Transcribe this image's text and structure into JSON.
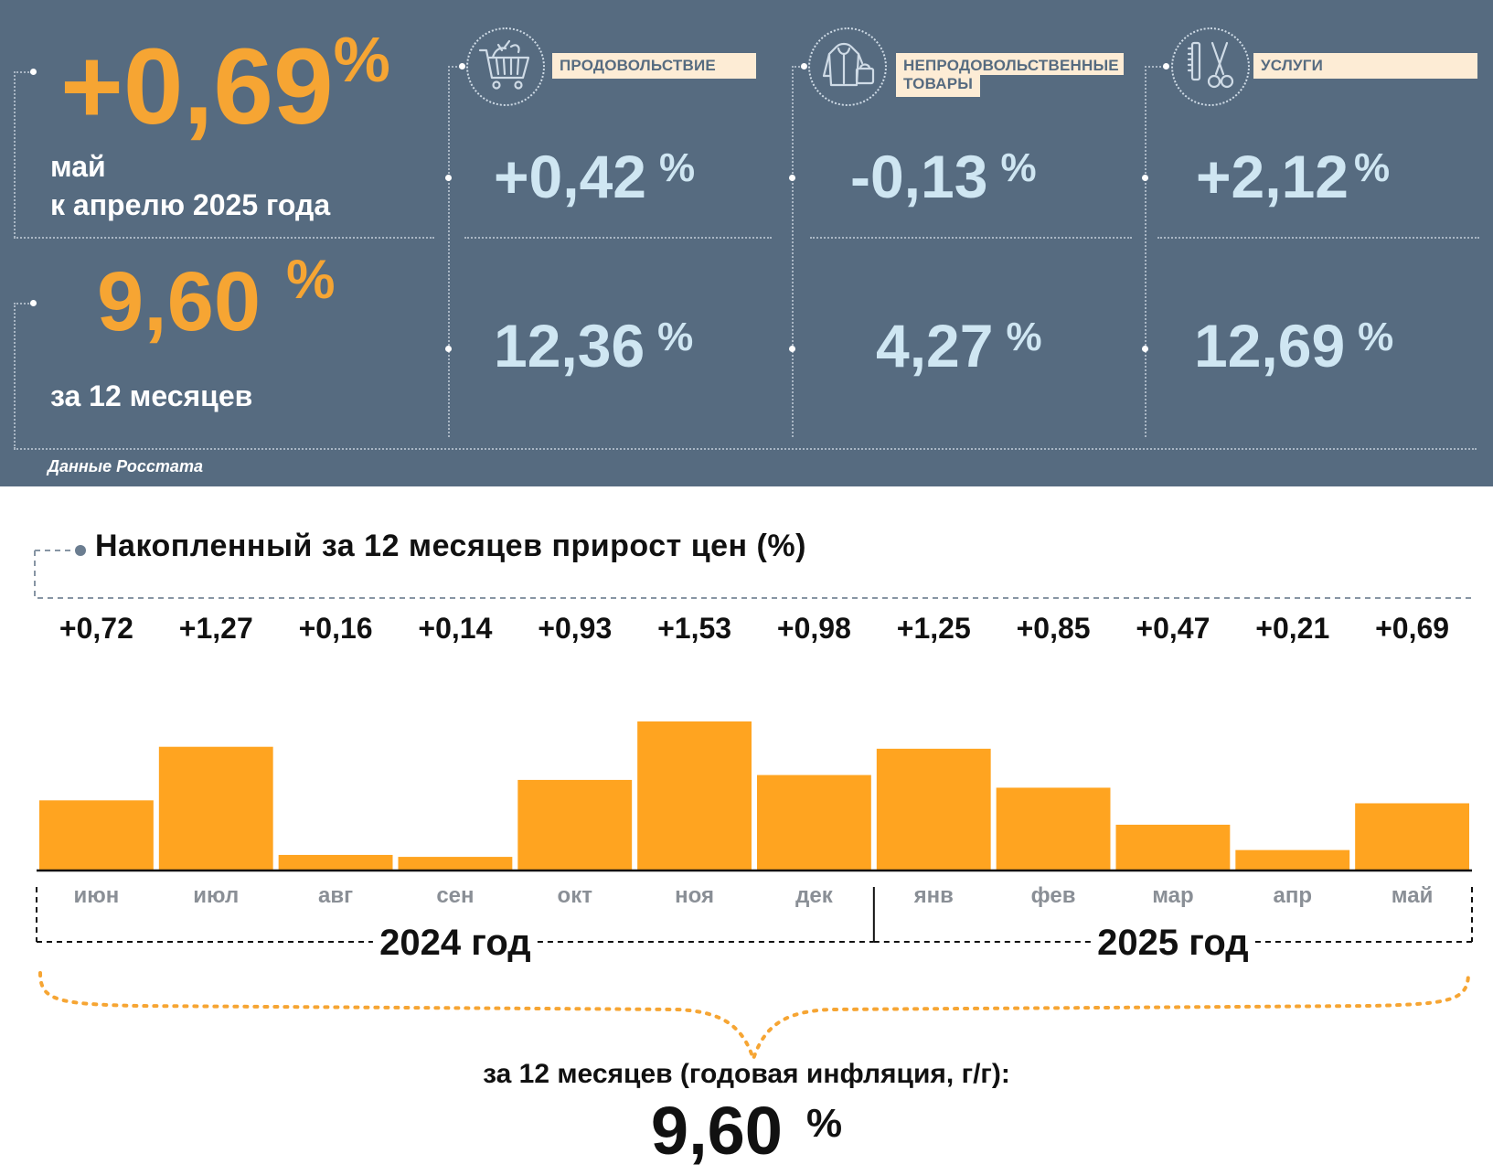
{
  "monthly": {
    "value": "+0,69",
    "percent": "%",
    "label_line1": "май",
    "label_line2": "к апрелю 2025 года"
  },
  "annual": {
    "value": "9,60",
    "percent": "%",
    "label": "за 12 месяцев"
  },
  "source": "Данные Росстата",
  "categories": [
    {
      "icon": "shopping-cart-icon",
      "label": "ПРОДОВОЛЬСТВИЕ",
      "monthly": "+0,42",
      "annual": "12,36",
      "percent": "%"
    },
    {
      "icon": "hoodie-bag-icon",
      "label_line1": "НЕПРОДОВОЛЬСТВЕННЫЕ",
      "label_line2": "ТОВАРЫ",
      "monthly": "-0,13",
      "annual": "4,27",
      "percent": "%"
    },
    {
      "icon": "comb-scissors-icon",
      "label": "УСЛУГИ",
      "monthly": "+2,12",
      "annual": "12,69",
      "percent": "%"
    }
  ],
  "colors": {
    "panel_bg": "#566b80",
    "accent_orange": "#f6a533",
    "light_blue": "#cfe6f2",
    "label_bg": "#fdecd5",
    "bar": "#ffa420"
  },
  "chart_data": {
    "type": "bar",
    "title": "Накопленный за 12 месяцев прирост цен (%)",
    "categories": [
      "июн",
      "июл",
      "авг",
      "сен",
      "окт",
      "ноя",
      "дек",
      "янв",
      "фев",
      "мар",
      "апр",
      "май"
    ],
    "values": [
      0.72,
      1.27,
      0.16,
      0.14,
      0.93,
      1.53,
      0.98,
      1.25,
      0.85,
      0.47,
      0.21,
      0.69
    ],
    "data_labels": [
      "+0,72",
      "+1,27",
      "+0,16",
      "+0,14",
      "+0,93",
      "+1,53",
      "+0,98",
      "+1,25",
      "+0,85",
      "+0,47",
      "+0,21",
      "+0,69"
    ],
    "year_groups": [
      {
        "label": "2024 год",
        "months": 7
      },
      {
        "label": "2025 год",
        "months": 5
      }
    ],
    "ylim": [
      0,
      1.53
    ],
    "grid": false,
    "legend": "none"
  },
  "summary": {
    "label": "за 12 месяцев (годовая инфляция, г/г):",
    "value": "9,60",
    "percent": "%"
  }
}
